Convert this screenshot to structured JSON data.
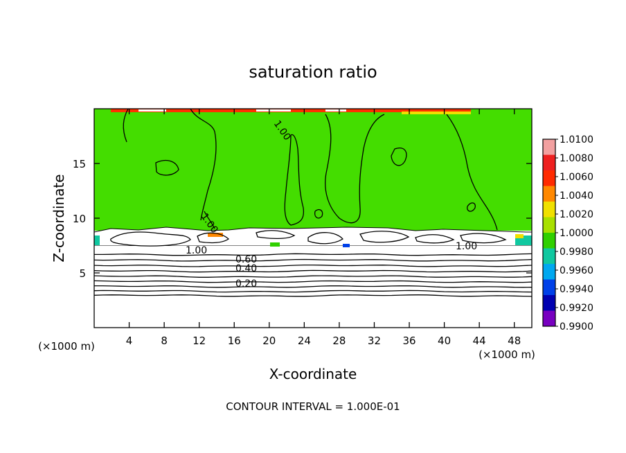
{
  "chart_data": {
    "type": "heatmap",
    "title": "saturation ratio",
    "xlabel": "X-coordinate",
    "ylabel": "Z-coordinate",
    "x_unit_left": "(×1000 m)",
    "x_unit_right": "(×1000 m)",
    "xlim": [
      0,
      50
    ],
    "ylim": [
      0,
      20
    ],
    "x_ticks": [
      4,
      8,
      12,
      16,
      20,
      24,
      28,
      32,
      36,
      40,
      44,
      48
    ],
    "y_ticks": [
      5,
      10,
      15
    ],
    "footer": "CONTOUR INTERVAL = 1.000E-01",
    "colorbar": {
      "min": 0.99,
      "max": 1.01,
      "labels": [
        "1.0100",
        "1.0080",
        "1.0060",
        "1.0040",
        "1.0020",
        "1.0000",
        "0.9980",
        "0.9960",
        "0.9940",
        "0.9920",
        "0.9900"
      ],
      "colors": [
        "#f2a0a0",
        "#ee2020",
        "#ff2a00",
        "#ff8800",
        "#f0e000",
        "#a8e000",
        "#30d000",
        "#10c8a0",
        "#00a8f0",
        "#0040e8",
        "#0000b0",
        "#7800c0"
      ]
    },
    "field_color": "#44dd00",
    "contour_labels": [
      "1.00",
      "1.00",
      "1.00",
      "1.00",
      "0.60",
      "0.40",
      "0.20"
    ],
    "contour_levels_below_cloud_base": [
      0.1,
      0.2,
      0.3,
      0.4,
      0.5,
      0.6,
      0.7,
      0.8,
      0.9
    ],
    "cloud_layer": {
      "z_bottom": 7.2,
      "z_top": 8.9
    }
  }
}
